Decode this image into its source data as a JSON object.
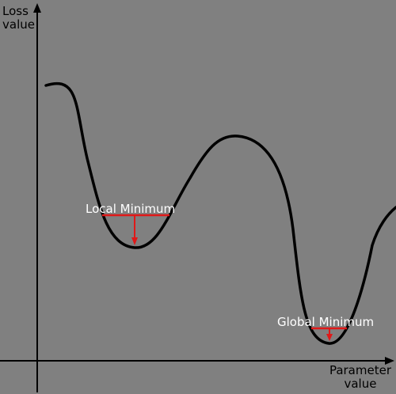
{
  "axes": {
    "y_label_line1": "Loss",
    "y_label_line2": "value",
    "x_label_line1": "Parameter",
    "x_label_line2": "value"
  },
  "annotations": {
    "local_minimum": "Local Minimum",
    "global_minimum": "Global Minimum"
  },
  "colors": {
    "background": "#808080",
    "curve": "#000000",
    "axis": "#000000",
    "marker": "#e01818",
    "label_text": "#ffffff"
  }
}
